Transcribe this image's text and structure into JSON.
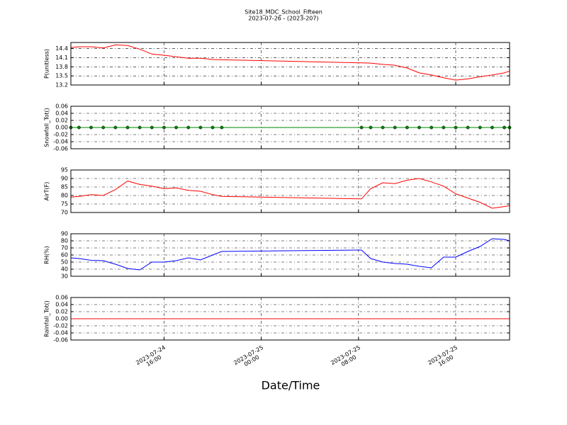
{
  "title": "Site18_MDC_School_Fifteen",
  "subtitle": "2023-07-26 - (2023-207)",
  "chart_data": [
    {
      "type": "line",
      "ylabel": "P(unitless)",
      "color": "#ff0000",
      "xlim": [
        "2023-07-24 08:20",
        "2023-07-25 20:26"
      ],
      "xticks": [
        {
          "value": "2023-07-24 16:00",
          "label": "2023-07-24\n16:00"
        },
        {
          "value": "2023-07-25 00:00",
          "label": "2023-07-25\n00:00"
        },
        {
          "value": "2023-07-25 08:00",
          "label": "2023-07-25\n08:00"
        },
        {
          "value": "2023-07-25 16:00",
          "label": "2023-07-25\n16:00"
        }
      ],
      "ylim": [
        13.2,
        14.6
      ],
      "yticks": [
        13.2,
        13.5,
        13.8,
        14.1,
        14.4
      ],
      "grid": true,
      "x": [
        "2023-07-24 08:20",
        "2023-07-24 09:00",
        "2023-07-24 10:00",
        "2023-07-24 11:00",
        "2023-07-24 12:00",
        "2023-07-24 13:00",
        "2023-07-24 14:00",
        "2023-07-24 15:00",
        "2023-07-24 16:00",
        "2023-07-24 17:00",
        "2023-07-24 18:00",
        "2023-07-24 19:00",
        "2023-07-24 20:00",
        "2023-07-24 20:45",
        "2023-07-25 08:15",
        "2023-07-25 09:00",
        "2023-07-25 10:00",
        "2023-07-25 11:00",
        "2023-07-25 12:00",
        "2023-07-25 13:00",
        "2023-07-25 14:00",
        "2023-07-25 15:00",
        "2023-07-25 16:00",
        "2023-07-25 17:00",
        "2023-07-25 18:00",
        "2023-07-25 19:00",
        "2023-07-25 20:00",
        "2023-07-25 20:26"
      ],
      "values": [
        14.43,
        14.46,
        14.46,
        14.42,
        14.52,
        14.5,
        14.38,
        14.22,
        14.18,
        14.13,
        14.08,
        14.08,
        14.04,
        14.03,
        13.93,
        13.92,
        13.88,
        13.85,
        13.76,
        13.6,
        13.53,
        13.44,
        13.36,
        13.4,
        13.47,
        13.53,
        13.6,
        13.66
      ]
    },
    {
      "type": "line",
      "ylabel": "Snowfall_Tot()",
      "color": "#008000",
      "marker": true,
      "xlim": [
        "2023-07-24 08:20",
        "2023-07-25 20:26"
      ],
      "xticks": [
        {
          "value": "2023-07-24 16:00",
          "label": "2023-07-24\n16:00"
        },
        {
          "value": "2023-07-25 00:00",
          "label": "2023-07-25\n00:00"
        },
        {
          "value": "2023-07-25 08:00",
          "label": "2023-07-25\n08:00"
        },
        {
          "value": "2023-07-25 16:00",
          "label": "2023-07-25\n16:00"
        }
      ],
      "ylim": [
        -0.06,
        0.06
      ],
      "yticks": [
        -0.06,
        -0.04,
        -0.02,
        {
          "value": 0,
          "label": "0.00"
        },
        0.02,
        0.04,
        0.06
      ],
      "grid": true,
      "x": [
        "2023-07-24 08:20",
        "2023-07-24 09:00",
        "2023-07-24 10:00",
        "2023-07-24 11:00",
        "2023-07-24 12:00",
        "2023-07-24 13:00",
        "2023-07-24 14:00",
        "2023-07-24 15:00",
        "2023-07-24 16:00",
        "2023-07-24 17:00",
        "2023-07-24 18:00",
        "2023-07-24 19:00",
        "2023-07-24 20:00",
        "2023-07-24 20:45",
        "2023-07-25 08:15",
        "2023-07-25 09:00",
        "2023-07-25 10:00",
        "2023-07-25 11:00",
        "2023-07-25 12:00",
        "2023-07-25 13:00",
        "2023-07-25 14:00",
        "2023-07-25 15:00",
        "2023-07-25 16:00",
        "2023-07-25 17:00",
        "2023-07-25 18:00",
        "2023-07-25 19:00",
        "2023-07-25 20:00",
        "2023-07-25 20:26"
      ],
      "values": [
        0,
        0,
        0,
        0,
        0,
        0,
        0,
        0,
        0,
        0,
        0,
        0,
        0,
        0,
        0,
        0,
        0,
        0,
        0,
        0,
        0,
        0,
        0,
        0,
        0,
        0,
        0,
        0
      ]
    },
    {
      "type": "line",
      "ylabel": "AirT(F)",
      "color": "#ff0000",
      "xlim": [
        "2023-07-24 08:20",
        "2023-07-25 20:26"
      ],
      "xticks": [
        {
          "value": "2023-07-24 16:00",
          "label": "2023-07-24\n16:00"
        },
        {
          "value": "2023-07-25 00:00",
          "label": "2023-07-25\n00:00"
        },
        {
          "value": "2023-07-25 08:00",
          "label": "2023-07-25\n08:00"
        },
        {
          "value": "2023-07-25 16:00",
          "label": "2023-07-25\n16:00"
        }
      ],
      "ylim": [
        70,
        95
      ],
      "yticks": [
        70,
        75,
        80,
        85,
        90,
        95
      ],
      "grid": true,
      "x": [
        "2023-07-24 08:20",
        "2023-07-24 09:00",
        "2023-07-24 10:00",
        "2023-07-24 11:00",
        "2023-07-24 12:00",
        "2023-07-24 13:00",
        "2023-07-24 14:00",
        "2023-07-24 15:00",
        "2023-07-24 16:00",
        "2023-07-24 17:00",
        "2023-07-24 18:00",
        "2023-07-24 19:00",
        "2023-07-24 20:00",
        "2023-07-24 20:45",
        "2023-07-25 08:15",
        "2023-07-25 09:00",
        "2023-07-25 10:00",
        "2023-07-25 11:00",
        "2023-07-25 12:00",
        "2023-07-25 13:00",
        "2023-07-25 14:00",
        "2023-07-25 15:00",
        "2023-07-25 16:00",
        "2023-07-25 17:00",
        "2023-07-25 18:00",
        "2023-07-25 19:00",
        "2023-07-25 20:00",
        "2023-07-25 20:26"
      ],
      "values": [
        79,
        79.5,
        80.5,
        80,
        83.5,
        88.5,
        86.5,
        85.5,
        84,
        84.5,
        83,
        82.5,
        80.5,
        79.5,
        78,
        84,
        87.5,
        87,
        89,
        90,
        88,
        85.5,
        81,
        78.5,
        76,
        72.5,
        73.5,
        74
      ]
    },
    {
      "type": "line",
      "ylabel": "RH(%)",
      "color": "#0000ff",
      "xlim": [
        "2023-07-24 08:20",
        "2023-07-25 20:26"
      ],
      "xticks": [
        {
          "value": "2023-07-24 16:00",
          "label": "2023-07-24\n16:00"
        },
        {
          "value": "2023-07-25 00:00",
          "label": "2023-07-25\n00:00"
        },
        {
          "value": "2023-07-25 08:00",
          "label": "2023-07-25\n08:00"
        },
        {
          "value": "2023-07-25 16:00",
          "label": "2023-07-25\n16:00"
        }
      ],
      "ylim": [
        30,
        90
      ],
      "yticks": [
        30,
        40,
        50,
        60,
        70,
        80,
        90
      ],
      "grid": true,
      "x": [
        "2023-07-24 08:20",
        "2023-07-24 09:00",
        "2023-07-24 10:00",
        "2023-07-24 11:00",
        "2023-07-24 12:00",
        "2023-07-24 13:00",
        "2023-07-24 14:00",
        "2023-07-24 15:00",
        "2023-07-24 16:00",
        "2023-07-24 17:00",
        "2023-07-24 18:00",
        "2023-07-24 19:00",
        "2023-07-24 20:00",
        "2023-07-24 20:45",
        "2023-07-25 08:15",
        "2023-07-25 09:00",
        "2023-07-25 10:00",
        "2023-07-25 11:00",
        "2023-07-25 12:00",
        "2023-07-25 13:00",
        "2023-07-25 14:00",
        "2023-07-25 15:00",
        "2023-07-25 16:00",
        "2023-07-25 17:00",
        "2023-07-25 18:00",
        "2023-07-25 19:00",
        "2023-07-25 20:00",
        "2023-07-25 20:26"
      ],
      "values": [
        56,
        55,
        52.5,
        52,
        47,
        41,
        39,
        50,
        50,
        52,
        56,
        53,
        60,
        65,
        67,
        55,
        50,
        48,
        47,
        44,
        42,
        57,
        57,
        65,
        72,
        83,
        82,
        80
      ]
    },
    {
      "type": "line",
      "ylabel": "Rainfall_Tot()",
      "color": "#ff0000",
      "xlabel": "Date/Time",
      "xlim": [
        "2023-07-24 08:20",
        "2023-07-25 20:26"
      ],
      "xticks": [
        {
          "value": "2023-07-24 16:00",
          "label": "2023-07-24\n16:00"
        },
        {
          "value": "2023-07-25 00:00",
          "label": "2023-07-25\n00:00"
        },
        {
          "value": "2023-07-25 08:00",
          "label": "2023-07-25\n08:00"
        },
        {
          "value": "2023-07-25 16:00",
          "label": "2023-07-25\n16:00"
        }
      ],
      "ylim": [
        -0.06,
        0.06
      ],
      "yticks": [
        -0.06,
        -0.04,
        -0.02,
        {
          "value": 0,
          "label": "0.00"
        },
        0.02,
        0.04,
        0.06
      ],
      "grid": true,
      "x": [
        "2023-07-24 08:20",
        "2023-07-24 09:00",
        "2023-07-24 10:00",
        "2023-07-24 11:00",
        "2023-07-24 12:00",
        "2023-07-24 13:00",
        "2023-07-24 14:00",
        "2023-07-24 15:00",
        "2023-07-24 16:00",
        "2023-07-24 17:00",
        "2023-07-24 18:00",
        "2023-07-24 19:00",
        "2023-07-24 20:00",
        "2023-07-24 20:45",
        "2023-07-25 08:15",
        "2023-07-25 09:00",
        "2023-07-25 10:00",
        "2023-07-25 11:00",
        "2023-07-25 12:00",
        "2023-07-25 13:00",
        "2023-07-25 14:00",
        "2023-07-25 15:00",
        "2023-07-25 16:00",
        "2023-07-25 17:00",
        "2023-07-25 18:00",
        "2023-07-25 19:00",
        "2023-07-25 20:00",
        "2023-07-25 20:26"
      ],
      "values": [
        0,
        0,
        0,
        0,
        0,
        0,
        0,
        0,
        0,
        0,
        0,
        0,
        0,
        0,
        0,
        0,
        0,
        0,
        0,
        0,
        0,
        0,
        0,
        0,
        0,
        0,
        0,
        0
      ]
    }
  ]
}
